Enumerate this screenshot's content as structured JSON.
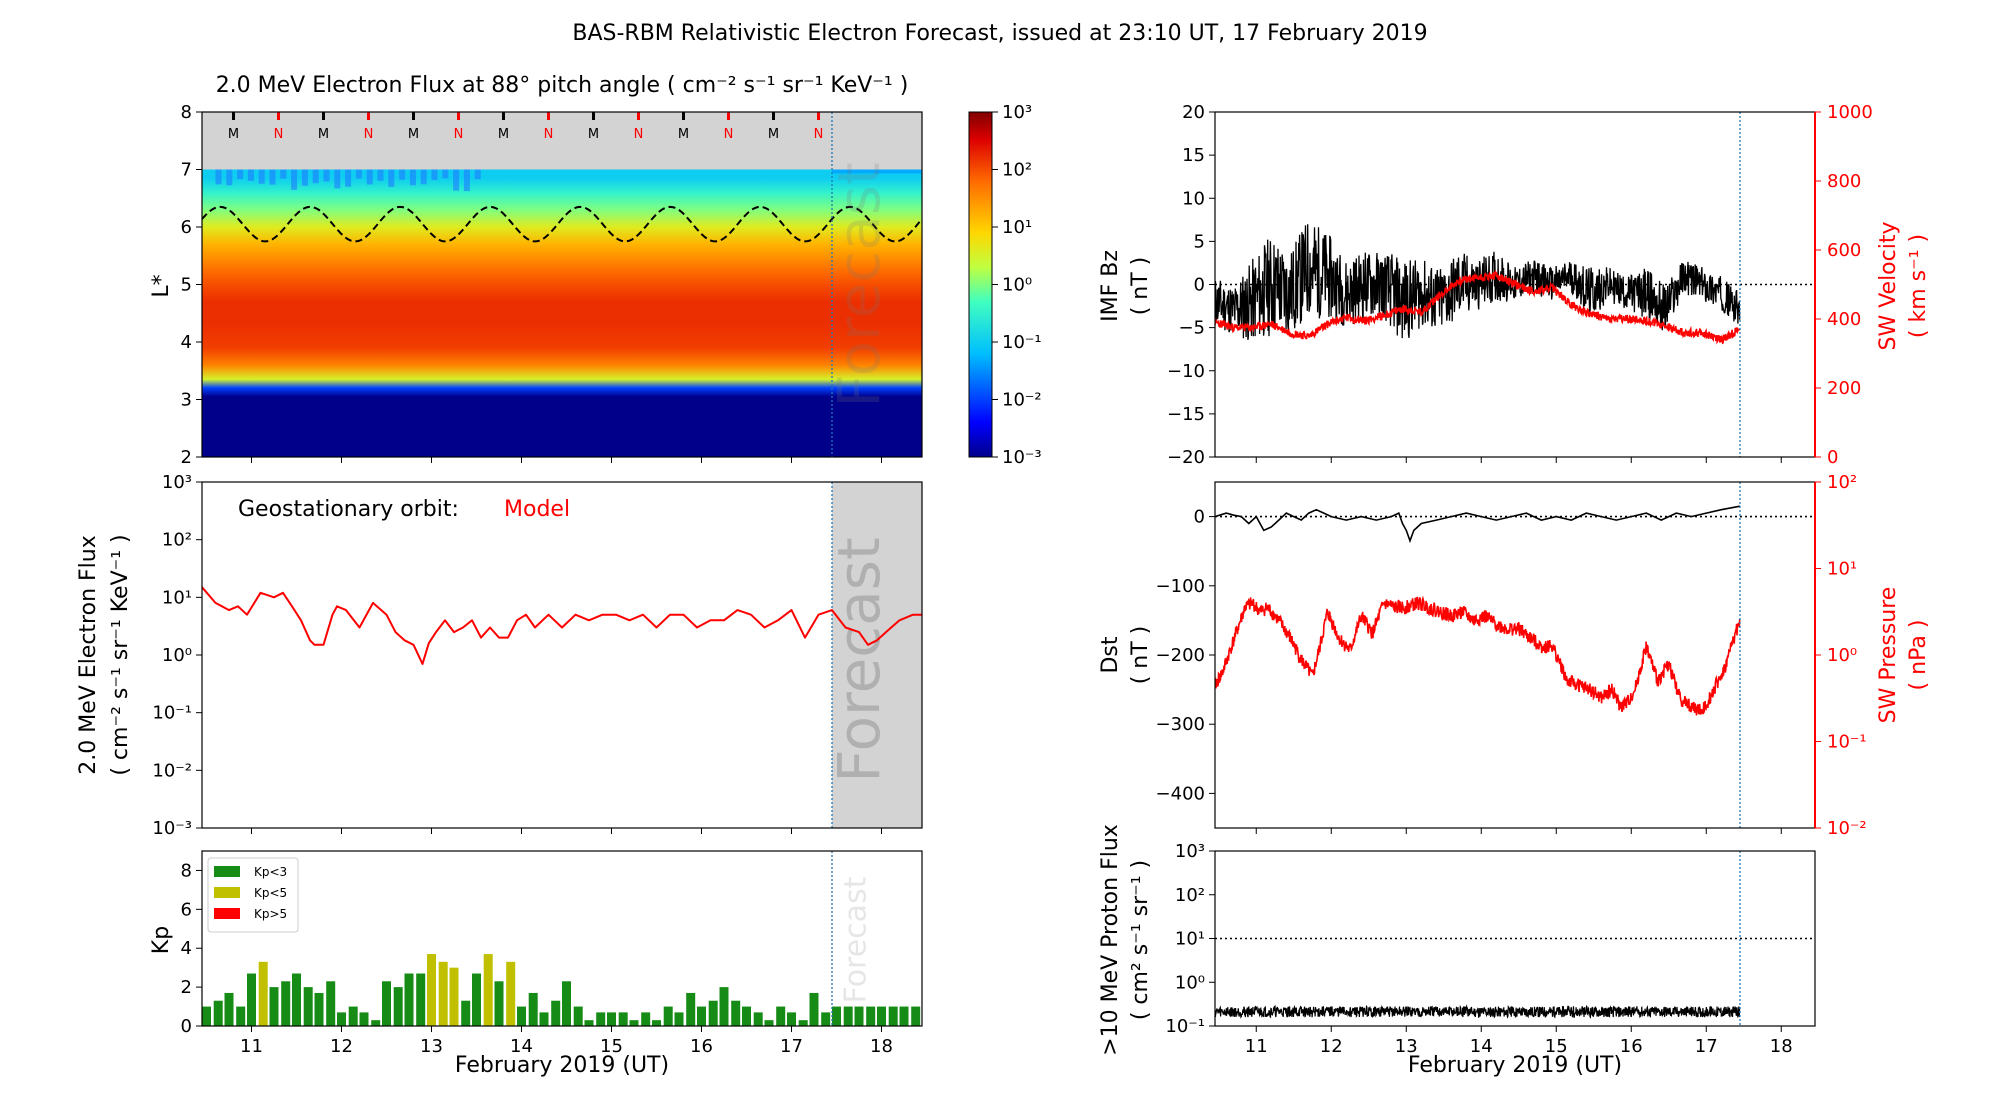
{
  "figure": {
    "title": "BAS-RBM Relativistic Electron Forecast, issued at 23:10 UT, 17 February 2019",
    "forecast_word": "Forecast",
    "xlabel": "February 2019 (UT)"
  },
  "colors": {
    "black": "#000000",
    "red": "#ff0000",
    "forecast_line": "#1f77b4",
    "kp_green": "#168c16",
    "kp_yellow": "#c0c000",
    "kp_red": "#ff0000",
    "shade": "#d3d3d3"
  },
  "chart_data": [
    {
      "id": "flux_map",
      "type": "heatmap",
      "title": "2.0 MeV Electron Flux at 88° pitch angle ( cm⁻² s⁻¹ sr⁻¹ KeV⁻¹ )",
      "ylabel": "L*",
      "xlim": [
        10.45,
        18.45
      ],
      "ylim": [
        2,
        8
      ],
      "yticks": [
        "2",
        "3",
        "4",
        "5",
        "6",
        "7",
        "8"
      ],
      "xticks": [
        11,
        12,
        13,
        14,
        15,
        16,
        17,
        18
      ],
      "forecast_start": 17.45,
      "mn_markers": [
        {
          "x": 10.8,
          "label": "M"
        },
        {
          "x": 11.3,
          "label": "N"
        },
        {
          "x": 11.8,
          "label": "M"
        },
        {
          "x": 12.3,
          "label": "N"
        },
        {
          "x": 12.8,
          "label": "M"
        },
        {
          "x": 13.3,
          "label": "N"
        },
        {
          "x": 13.8,
          "label": "M"
        },
        {
          "x": 14.3,
          "label": "N"
        },
        {
          "x": 14.8,
          "label": "M"
        },
        {
          "x": 15.3,
          "label": "N"
        },
        {
          "x": 15.8,
          "label": "M"
        },
        {
          "x": 16.3,
          "label": "N"
        },
        {
          "x": 16.8,
          "label": "M"
        },
        {
          "x": 17.3,
          "label": "N"
        }
      ],
      "colorbar": {
        "ticks": [
          "10⁻³",
          "10⁻²",
          "10⁻¹",
          "10⁰",
          "10¹",
          "10²",
          "10³"
        ],
        "range_log10": [
          -3,
          3
        ]
      },
      "profile_log10": [
        [
          2.0,
          -3
        ],
        [
          3.05,
          -3
        ],
        [
          3.2,
          -2
        ],
        [
          3.35,
          0.5
        ],
        [
          3.6,
          1.6
        ],
        [
          3.9,
          2.1
        ],
        [
          4.3,
          2.2
        ],
        [
          4.7,
          2.2
        ],
        [
          5.0,
          2.0
        ],
        [
          5.3,
          1.7
        ],
        [
          5.7,
          1.2
        ],
        [
          6.0,
          0.6
        ],
        [
          6.3,
          0
        ],
        [
          6.6,
          -0.5
        ],
        [
          6.85,
          -1
        ],
        [
          7.0,
          -1
        ]
      ],
      "magnetopause_dashed": {
        "mean": 6.05,
        "amplitude": 0.3,
        "period_days": 1.0
      }
    },
    {
      "id": "geo_flux",
      "type": "line",
      "annotation_label": "Geostationary orbit:",
      "annotation_value": "Model",
      "ylabel": "2.0 MeV Electron Flux",
      "ylabel_units": "( cm⁻² s⁻¹ sr⁻¹ KeV⁻¹ )",
      "yscale": "log",
      "ylim_log10": [
        -3,
        3
      ],
      "yticks": [
        "10⁻³",
        "10⁻²",
        "10⁻¹",
        "10⁰",
        "10¹",
        "10²",
        "10³"
      ],
      "x": [
        10.45,
        10.6,
        10.75,
        10.85,
        10.95,
        11.1,
        11.25,
        11.35,
        11.45,
        11.55,
        11.65,
        11.7,
        11.8,
        11.9,
        11.95,
        12.05,
        12.2,
        12.35,
        12.5,
        12.6,
        12.7,
        12.8,
        12.9,
        12.97,
        13.05,
        13.15,
        13.25,
        13.35,
        13.45,
        13.55,
        13.65,
        13.75,
        13.85,
        13.95,
        14.05,
        14.15,
        14.3,
        14.45,
        14.6,
        14.75,
        14.9,
        15.05,
        15.2,
        15.35,
        15.5,
        15.65,
        15.8,
        15.95,
        16.1,
        16.25,
        16.4,
        16.55,
        16.7,
        16.85,
        17.0,
        17.15,
        17.3,
        17.45,
        17.6,
        17.75,
        17.85,
        17.95,
        18.05,
        18.2,
        18.35,
        18.45
      ],
      "values": [
        15,
        8,
        6,
        7,
        5,
        12,
        10,
        12,
        7,
        4,
        1.8,
        1.5,
        1.5,
        5,
        7,
        6,
        3,
        8,
        5,
        2.5,
        1.8,
        1.5,
        0.7,
        1.6,
        2.5,
        4,
        2.5,
        3,
        4,
        2,
        3,
        2,
        2,
        4,
        5,
        3,
        5,
        3,
        5,
        4,
        5,
        5,
        4,
        5,
        3,
        5,
        5,
        3,
        4,
        4,
        6,
        5,
        3,
        4,
        6,
        2,
        5,
        6,
        3,
        2.5,
        1.5,
        1.8,
        2.5,
        4,
        5,
        5
      ]
    },
    {
      "id": "kp",
      "type": "bar",
      "ylabel": "Kp",
      "ylim": [
        0,
        9
      ],
      "yticks": [
        "0",
        "2",
        "4",
        "6",
        "8"
      ],
      "legend": [
        "Kp<3",
        "Kp<5",
        "Kp>5"
      ],
      "bar_width_days": 0.1,
      "x": [
        10.5,
        10.63,
        10.75,
        10.88,
        11.0,
        11.13,
        11.25,
        11.38,
        11.5,
        11.63,
        11.75,
        11.88,
        12.0,
        12.13,
        12.25,
        12.38,
        12.5,
        12.63,
        12.75,
        12.88,
        13.0,
        13.13,
        13.25,
        13.38,
        13.5,
        13.63,
        13.75,
        13.88,
        14.0,
        14.13,
        14.25,
        14.38,
        14.5,
        14.63,
        14.75,
        14.88,
        15.0,
        15.13,
        15.25,
        15.38,
        15.5,
        15.63,
        15.75,
        15.88,
        16.0,
        16.13,
        16.25,
        16.38,
        16.5,
        16.63,
        16.75,
        16.88,
        17.0,
        17.13,
        17.25,
        17.38,
        17.5,
        17.63,
        17.75,
        17.88,
        18.0,
        18.13,
        18.25,
        18.38
      ],
      "values": [
        1.0,
        1.3,
        1.7,
        1.0,
        2.7,
        3.3,
        2.0,
        2.3,
        2.7,
        2.0,
        1.7,
        2.3,
        0.7,
        1.0,
        0.7,
        0.3,
        2.3,
        2.0,
        2.7,
        2.7,
        3.7,
        3.3,
        3.0,
        1.3,
        2.7,
        3.7,
        2.3,
        3.3,
        1.0,
        1.7,
        0.7,
        1.3,
        2.3,
        1.0,
        0.3,
        0.7,
        0.7,
        0.7,
        0.3,
        0.7,
        0.3,
        1.0,
        0.7,
        1.7,
        1.0,
        1.3,
        2.0,
        1.3,
        1.0,
        0.7,
        0.3,
        1.0,
        0.7,
        0.3,
        1.7,
        0.7,
        1.0,
        1.0,
        1.0,
        1.0,
        1.0,
        1.0,
        1.0,
        1.0
      ]
    },
    {
      "id": "imf_sw",
      "type": "line",
      "ylabel_left": "IMF Bz",
      "ylabel_left_units": "( nT )",
      "ylabel_right": "SW Velocity",
      "ylabel_right_units": "( km s⁻¹ )",
      "ylim_left": [
        -20,
        20
      ],
      "ylim_right": [
        0,
        1000
      ],
      "yticks_left": [
        "−20",
        "−15",
        "−10",
        "−5",
        "0",
        "5",
        "10",
        "15",
        "20"
      ],
      "yticks_right": [
        "0",
        "200",
        "400",
        "600",
        "800",
        "1000"
      ],
      "bz_envelope": {
        "x": [
          10.45,
          10.7,
          10.95,
          11.2,
          11.45,
          11.7,
          11.95,
          12.2,
          12.45,
          12.7,
          12.95,
          13.2,
          13.45,
          13.7,
          13.95,
          14.2,
          14.45,
          14.7,
          14.95,
          15.2,
          15.45,
          15.7,
          15.95,
          16.2,
          16.45,
          16.7,
          16.95,
          17.2,
          17.45
        ],
        "center": [
          -2,
          -3,
          -2,
          0,
          -1,
          2,
          1,
          -1,
          0,
          0,
          -2,
          -1,
          -2,
          0,
          0,
          1,
          0,
          1,
          0,
          1,
          -1,
          0,
          -1,
          -1,
          -3,
          1,
          0,
          -1,
          -3
        ],
        "spread": [
          3,
          3,
          5,
          6,
          5,
          6,
          5,
          4,
          4,
          4,
          5,
          4,
          4,
          4,
          3,
          3,
          2,
          2,
          2,
          2,
          3,
          2,
          2,
          3,
          3,
          2,
          2,
          2,
          2
        ]
      },
      "velocity": {
        "x": [
          10.45,
          10.7,
          10.95,
          11.2,
          11.45,
          11.7,
          11.95,
          12.2,
          12.45,
          12.7,
          12.95,
          13.2,
          13.45,
          13.7,
          13.95,
          14.2,
          14.45,
          14.7,
          14.95,
          15.2,
          15.45,
          15.7,
          15.95,
          16.2,
          16.45,
          16.7,
          16.95,
          17.2,
          17.45
        ],
        "values": [
          390,
          375,
          375,
          385,
          360,
          350,
          385,
          405,
          395,
          410,
          430,
          420,
          470,
          510,
          520,
          525,
          500,
          480,
          490,
          440,
          415,
          400,
          400,
          395,
          380,
          360,
          360,
          340,
          370
        ]
      }
    },
    {
      "id": "dst_pressure",
      "type": "line",
      "ylabel_left": "Dst",
      "ylabel_left_units": "( nT )",
      "ylabel_right": "SW Pressure",
      "ylabel_right_units": "( nPa )",
      "ylim_left": [
        -450,
        50
      ],
      "ylim_right_log10": [
        -2,
        2
      ],
      "yticks_left": [
        "−400",
        "−300",
        "−200",
        "−100",
        "0"
      ],
      "yticks_right": [
        "10⁻²",
        "10⁻¹",
        "10⁰",
        "10¹",
        "10²"
      ],
      "dst": {
        "x": [
          10.45,
          10.6,
          10.7,
          10.8,
          10.9,
          11.0,
          11.05,
          11.1,
          11.2,
          11.3,
          11.4,
          11.5,
          11.6,
          11.7,
          11.8,
          11.9,
          12.0,
          12.2,
          12.4,
          12.6,
          12.8,
          12.9,
          12.95,
          13.0,
          13.05,
          13.1,
          13.2,
          13.4,
          13.6,
          13.8,
          14.0,
          14.2,
          14.4,
          14.6,
          14.8,
          15.0,
          15.2,
          15.4,
          15.6,
          15.8,
          16.0,
          16.2,
          16.4,
          16.6,
          16.8,
          17.0,
          17.2,
          17.45
        ],
        "values": [
          0,
          5,
          2,
          0,
          -10,
          0,
          -10,
          -20,
          -15,
          -5,
          5,
          0,
          -5,
          5,
          10,
          5,
          0,
          -5,
          0,
          -5,
          0,
          5,
          -10,
          -20,
          -35,
          -20,
          -10,
          -5,
          0,
          5,
          0,
          -5,
          0,
          5,
          -5,
          0,
          -5,
          5,
          0,
          -5,
          0,
          5,
          -5,
          5,
          0,
          5,
          10,
          15
        ]
      },
      "pressure": {
        "x": [
          10.45,
          10.55,
          10.65,
          10.75,
          10.85,
          10.95,
          11.05,
          11.15,
          11.3,
          11.45,
          11.6,
          11.75,
          11.85,
          11.95,
          12.1,
          12.25,
          12.4,
          12.55,
          12.7,
          12.85,
          13.0,
          13.15,
          13.3,
          13.45,
          13.6,
          13.75,
          13.9,
          14.05,
          14.2,
          14.35,
          14.5,
          14.65,
          14.8,
          14.95,
          15.05,
          15.15,
          15.3,
          15.45,
          15.6,
          15.75,
          15.85,
          15.95,
          16.05,
          16.2,
          16.35,
          16.5,
          16.65,
          16.8,
          16.95,
          17.1,
          17.25,
          17.35,
          17.45
        ],
        "log10": [
          -0.35,
          -0.2,
          0.05,
          0.3,
          0.55,
          0.6,
          0.5,
          0.55,
          0.4,
          0.2,
          -0.05,
          -0.25,
          0.1,
          0.5,
          0.2,
          0.05,
          0.45,
          0.25,
          0.6,
          0.55,
          0.55,
          0.6,
          0.55,
          0.5,
          0.45,
          0.5,
          0.4,
          0.45,
          0.35,
          0.3,
          0.3,
          0.2,
          0.1,
          0.1,
          -0.1,
          -0.3,
          -0.35,
          -0.4,
          -0.5,
          -0.4,
          -0.6,
          -0.55,
          -0.4,
          0.1,
          -0.3,
          -0.1,
          -0.5,
          -0.6,
          -0.65,
          -0.4,
          -0.15,
          0.15,
          0.4
        ]
      }
    },
    {
      "id": "proton_flux",
      "type": "line",
      "ylabel": ">10 MeV Proton Flux",
      "ylabel_units": "( cm² s⁻¹ sr⁻¹ )",
      "yscale": "log",
      "ylim_log10": [
        -1,
        3
      ],
      "yticks": [
        "10⁻¹",
        "10⁰",
        "10¹",
        "10²",
        "10³"
      ],
      "threshold": 10,
      "noise_band_log10": [
        -0.8,
        -0.55
      ]
    }
  ]
}
